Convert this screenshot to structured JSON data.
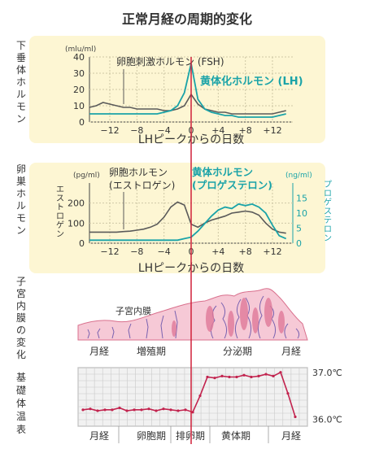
{
  "title": "正常月経の周期的変化",
  "colors": {
    "panel_bg": "#fdf6d3",
    "gray": "#5a5a5a",
    "teal": "#1aa3a8",
    "red": "#d0203a",
    "pink_fill": "#f6c9d6",
    "pink_dark": "#d9708d",
    "vessel": "#7a62b0",
    "bbt_line": "#c2234e",
    "chart_bg": "#f1f1f1"
  },
  "chart_data": [
    {
      "type": "line",
      "side_label": "下垂体ホルモン",
      "unit_left": "(mlu/ml)",
      "xlabel": "LHピークからの日数",
      "xlim": [
        -15,
        15
      ],
      "ylim": [
        0,
        40
      ],
      "yticks": [
        0,
        10,
        20,
        30,
        40
      ],
      "xticks": [
        "−12",
        "−8",
        "−4",
        "0",
        "+4",
        "+8",
        "+12"
      ],
      "xtick_values": [
        -12,
        -8,
        -4,
        0,
        4,
        8,
        12
      ],
      "grid": true,
      "series": [
        {
          "name": "卵胞刺激ホルモン (FSH)",
          "color": "gray",
          "x": [
            -15,
            -14,
            -13,
            -12,
            -11,
            -10,
            -9,
            -8,
            -7,
            -6,
            -5,
            -4,
            -3,
            -2,
            -1,
            0,
            1,
            2,
            3,
            4,
            5,
            6,
            7,
            8,
            9,
            10,
            11,
            12,
            13,
            14
          ],
          "y": [
            9,
            10,
            12,
            11,
            10,
            9,
            9,
            8,
            8,
            8,
            8,
            7,
            7,
            8,
            10,
            17,
            11,
            8,
            7,
            6,
            6,
            5,
            5,
            5,
            5,
            5,
            5,
            5,
            6,
            7
          ]
        },
        {
          "name": "黄体化ホルモン (LH)",
          "color": "teal",
          "x": [
            -15,
            -14,
            -13,
            -12,
            -11,
            -10,
            -9,
            -8,
            -7,
            -6,
            -5,
            -4,
            -3,
            -2,
            -1,
            0,
            1,
            2,
            3,
            4,
            5,
            6,
            7,
            8,
            9,
            10,
            11,
            12,
            13,
            14
          ],
          "y": [
            5,
            5,
            5,
            5,
            5,
            5,
            5,
            5,
            5,
            5,
            5,
            6,
            7,
            10,
            18,
            36,
            14,
            8,
            6,
            5,
            4,
            4,
            3,
            3,
            3,
            3,
            3,
            3,
            4,
            5
          ]
        }
      ]
    },
    {
      "type": "line",
      "side_label": "卵巣ホルモン",
      "unit_left": "(pg/ml)",
      "unit_right": "(ng/ml)",
      "ylabel_left": "エストロゲン",
      "ylabel_right": "プロゲステロン",
      "xlabel": "LHピークからの日数",
      "xlim": [
        -15,
        15
      ],
      "ylim_left": [
        0,
        300
      ],
      "ylim_right": [
        0,
        20
      ],
      "yticks_left": [
        0,
        100,
        200
      ],
      "yticks_right": [
        0,
        5,
        10,
        15
      ],
      "xticks": [
        "−12",
        "−8",
        "−4",
        "0",
        "+4",
        "+8",
        "+12"
      ],
      "xtick_values": [
        -12,
        -8,
        -4,
        0,
        4,
        8,
        12
      ],
      "grid": true,
      "series": [
        {
          "name": "卵胞ホルモン (エストロゲン)",
          "axis": "left",
          "color": "gray",
          "x": [
            -15,
            -14,
            -13,
            -12,
            -11,
            -10,
            -9,
            -8,
            -7,
            -6,
            -5,
            -4,
            -3,
            -2,
            -1,
            0,
            1,
            2,
            3,
            4,
            5,
            6,
            7,
            8,
            9,
            10,
            11,
            12,
            13,
            14
          ],
          "y": [
            55,
            55,
            55,
            55,
            55,
            58,
            60,
            65,
            70,
            80,
            95,
            130,
            180,
            205,
            190,
            95,
            80,
            100,
            115,
            125,
            135,
            150,
            155,
            160,
            155,
            140,
            100,
            70,
            55,
            50
          ]
        },
        {
          "name": "黄体ホルモン (プロゲステロン)",
          "axis": "right",
          "color": "teal",
          "x": [
            -15,
            -14,
            -13,
            -12,
            -11,
            -10,
            -9,
            -8,
            -7,
            -6,
            -5,
            -4,
            -3,
            -2,
            -1,
            0,
            1,
            2,
            3,
            4,
            5,
            6,
            7,
            8,
            9,
            10,
            11,
            12,
            13,
            14
          ],
          "y": [
            1,
            1,
            1,
            1,
            1,
            1,
            1,
            1,
            1,
            1,
            1,
            1,
            1,
            1,
            1.5,
            2,
            4,
            6.5,
            9,
            11,
            12,
            11.5,
            13,
            12.5,
            13,
            12,
            10,
            6,
            2.5,
            1.5
          ]
        }
      ]
    },
    {
      "type": "line",
      "side_label": "基礎体温表",
      "ylim": [
        35.85,
        37.1
      ],
      "yticks": [
        37.0,
        36.0
      ],
      "ytick_labels": [
        "37.0℃",
        "36.0℃"
      ],
      "xlim": [
        -15,
        15
      ],
      "grid": true,
      "phases": [
        "月経",
        "卵胞期",
        "排卵期",
        "黄体期",
        "月経"
      ],
      "series": [
        {
          "name": "基礎体温",
          "color": "bbt_line",
          "x": [
            -15,
            -14,
            -13,
            -12,
            -11,
            -10,
            -9,
            -8,
            -7,
            -6,
            -5,
            -4,
            -3,
            -2,
            -1,
            0,
            1,
            2,
            3,
            4,
            5,
            6,
            7,
            8,
            9,
            10,
            11,
            12,
            13,
            14
          ],
          "y": [
            36.2,
            36.22,
            36.18,
            36.2,
            36.2,
            36.24,
            36.18,
            36.2,
            36.2,
            36.22,
            36.18,
            36.22,
            36.2,
            36.18,
            36.2,
            36.15,
            36.5,
            36.9,
            36.88,
            36.92,
            36.9,
            36.9,
            36.94,
            36.9,
            36.92,
            36.96,
            36.92,
            37.0,
            36.55,
            36.05
          ]
        }
      ]
    }
  ],
  "endometrium": {
    "side_label": "子宮内膜の変化",
    "label": "子宮内膜",
    "phases": [
      "月経",
      "増殖期",
      "分泌期",
      "月経"
    ]
  }
}
